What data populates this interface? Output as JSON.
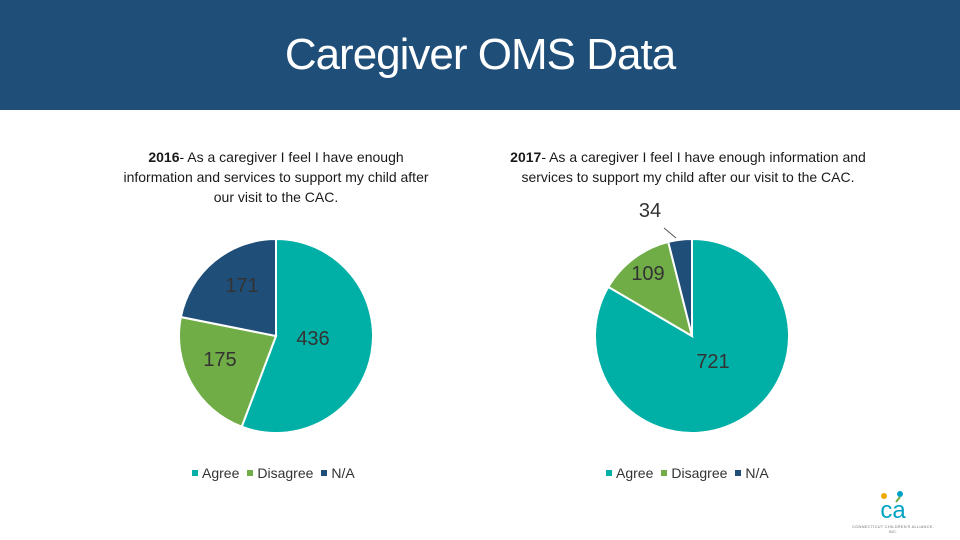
{
  "header": {
    "title": "Caregiver OMS Data"
  },
  "colors": {
    "agree": "#00b0a6",
    "disagree": "#70ad47",
    "na": "#1f4e79",
    "header_bg": "#1f4e79"
  },
  "chart_data": [
    {
      "type": "pie",
      "year": "2016",
      "title_prefix": "2016",
      "title_text": "- As a caregiver I feel I have enough information and services to support my child after our visit to the CAC.",
      "categories": [
        "Agree",
        "Disagree",
        "N/A"
      ],
      "values": [
        436,
        175,
        171
      ],
      "value_labels": [
        "436",
        "175",
        "171"
      ],
      "legend": [
        "Agree",
        "Disagree",
        "N/A"
      ],
      "legend_position": "bottom"
    },
    {
      "type": "pie",
      "year": "2017",
      "title_prefix": "2017",
      "title_text": "- As a caregiver I feel I have enough information and services to support my child after our visit to the CAC.",
      "categories": [
        "Agree",
        "Disagree",
        "N/A"
      ],
      "values": [
        721,
        109,
        34
      ],
      "value_labels": [
        "721",
        "109",
        "34"
      ],
      "legend": [
        "Agree",
        "Disagree",
        "N/A"
      ],
      "legend_position": "bottom"
    }
  ],
  "logo": {
    "text": "ca",
    "org_line": "CONNECTICUT CHILDREN'S ALLIANCE, INC."
  }
}
